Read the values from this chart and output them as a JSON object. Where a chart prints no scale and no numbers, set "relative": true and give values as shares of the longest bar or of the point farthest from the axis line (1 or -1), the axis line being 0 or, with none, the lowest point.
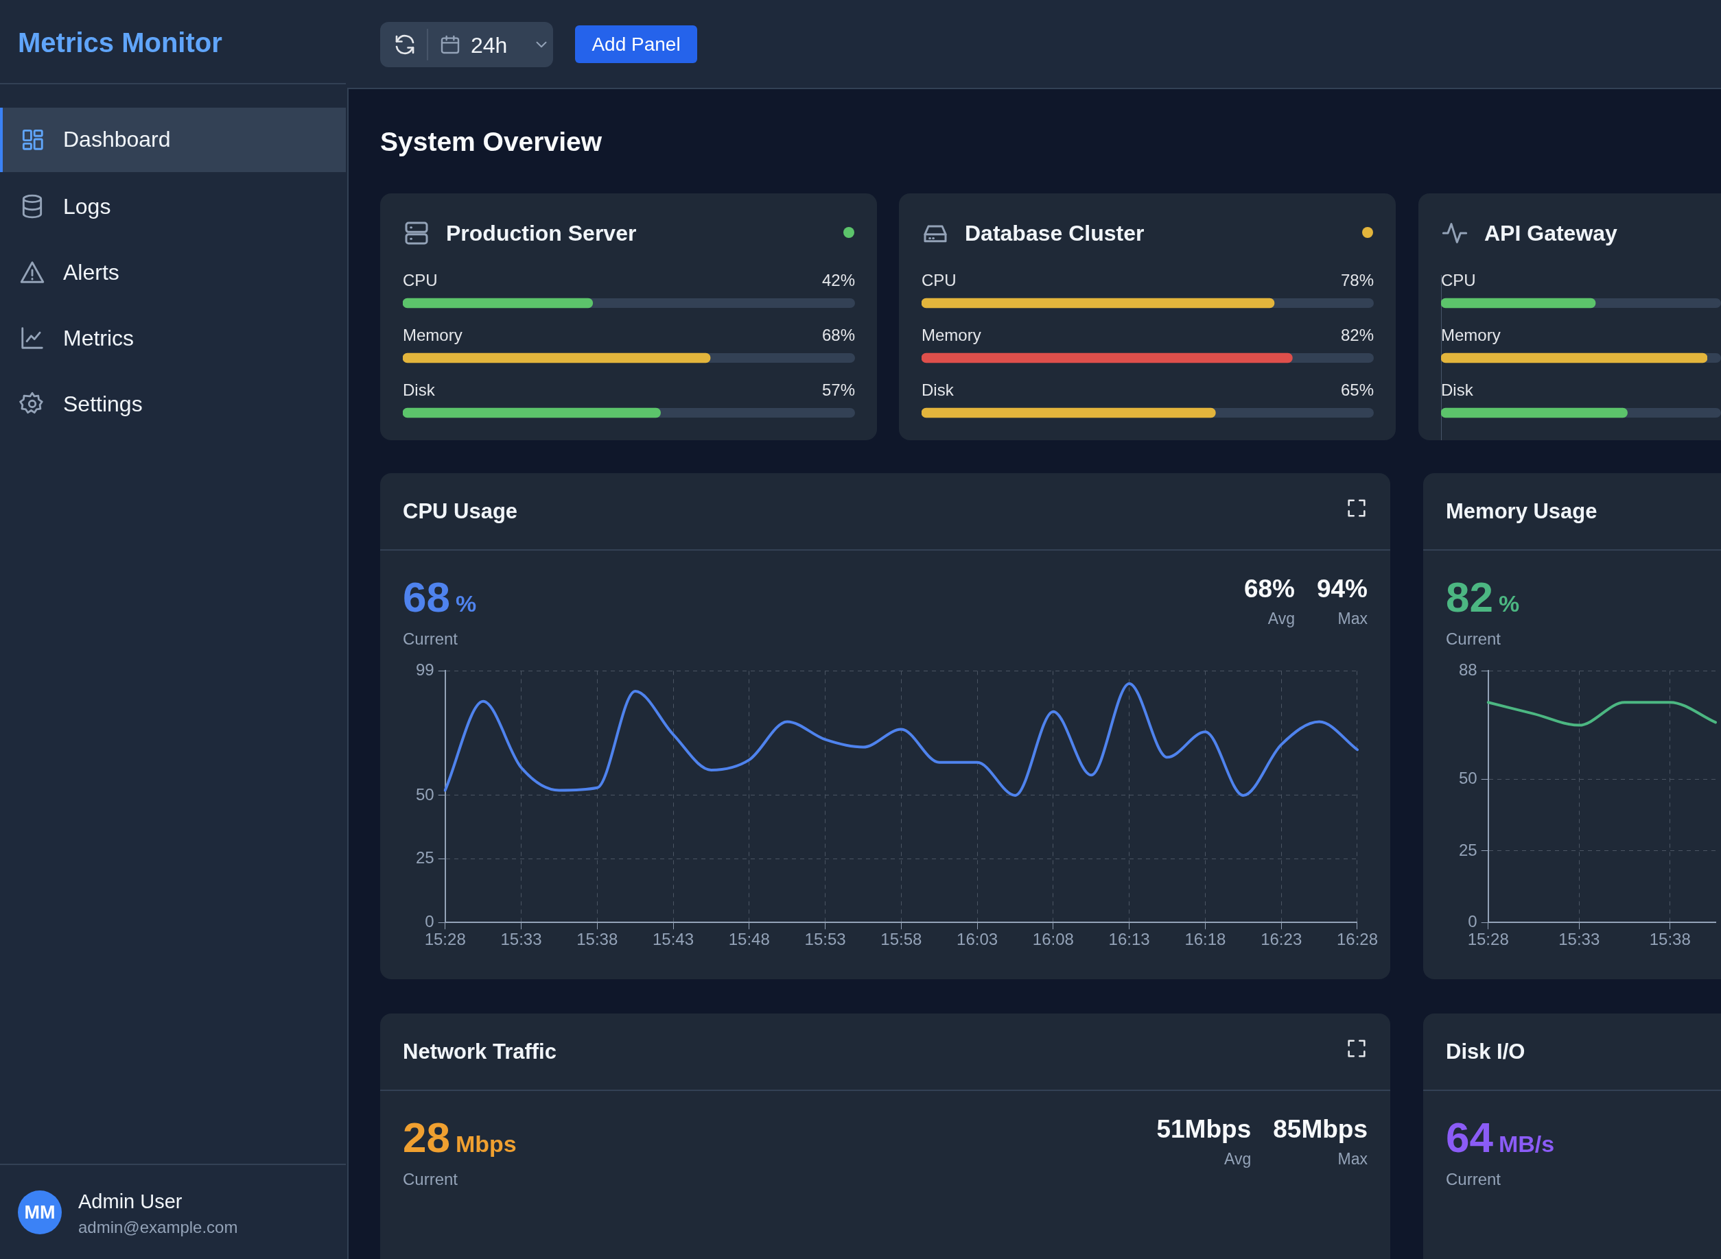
{
  "chart_data": [
    {
      "type": "other",
      "title": "Metrics Monitor",
      "annotations": [
        "Dashboard",
        "Logs",
        "Alerts",
        "Metrics",
        "Settings",
        "MM",
        "Admin User",
        "admin@example.com"
      ]
    },
    {
      "type": "other",
      "title": "System Overview",
      "annotations": [
        "24h",
        "Add Panel"
      ]
    },
    {
      "type": "bar",
      "title": "Production Server",
      "orientation": "horizontal",
      "categories": [
        "CPU",
        "Memory",
        "Disk"
      ],
      "values": [
        42,
        68,
        57
      ],
      "colors": [
        "#5cc46b",
        "#e3b53c",
        "#5cc46b"
      ],
      "value_labels": [
        "42%",
        "68%",
        "57%"
      ],
      "xlim": [
        0,
        100
      ],
      "tick_labels": "y"
    },
    {
      "type": "bar",
      "title": "Database Cluster",
      "orientation": "horizontal",
      "categories": [
        "CPU",
        "Memory",
        "Disk"
      ],
      "values": [
        78,
        82,
        65
      ],
      "colors": [
        "#e3b53c",
        "#de4f4b",
        "#e3b53c"
      ],
      "value_labels": [
        "78%",
        "82%",
        "65%"
      ],
      "xlim": [
        0,
        100
      ],
      "tick_labels": "y"
    },
    {
      "type": "bar",
      "title": "API Gateway",
      "orientation": "horizontal",
      "relative": true,
      "categories": [
        "CPU",
        "Memory",
        "Disk"
      ],
      "values": [
        0.58,
        1,
        0.7
      ],
      "colors": [
        "#5cc46b",
        "#e3b53c",
        "#5cc46b"
      ],
      "tick_labels": "y"
    },
    {
      "type": "line",
      "title": "CPU Usage",
      "annotations": [
        "68",
        "%",
        "Current",
        "68%",
        "Avg",
        "94%",
        "Max"
      ],
      "categories": [
        "15:28",
        null,
        "15:33",
        null,
        "15:38",
        null,
        "15:43",
        null,
        "15:48",
        null,
        "15:53",
        null,
        "15:58",
        null,
        "16:03",
        null,
        "16:08",
        null,
        "16:13",
        null,
        "16:18",
        null,
        "16:23",
        null,
        "16:28"
      ],
      "series": [
        {
          "color": "#4f83ee",
          "values": [
            52,
            87,
            61,
            52,
            53,
            91,
            74,
            60,
            64,
            79,
            72,
            69,
            76,
            63,
            63,
            50,
            83,
            58,
            94,
            65,
            75,
            50,
            70,
            79,
            68
          ]
        }
      ],
      "ylim": [
        0,
        99
      ],
      "yticks": [
        0,
        25,
        50,
        99
      ],
      "grid": true,
      "marker": "none",
      "line_style": "solid"
    },
    {
      "type": "line",
      "title": "Memory Usage",
      "annotations": [
        "82",
        "%",
        "Current"
      ],
      "categories": [
        "15:28",
        null,
        "15:33",
        null,
        "15:38",
        null
      ],
      "series": [
        {
          "color": "#4cb782",
          "values": [
            77,
            73,
            69,
            77,
            77,
            70
          ]
        }
      ],
      "ylim": [
        0,
        88
      ],
      "yticks": [
        0,
        25,
        50,
        88
      ],
      "grid": true,
      "marker": "none",
      "line_style": "solid"
    },
    {
      "type": "other",
      "title": "Network Traffic",
      "color": "#f0a030",
      "annotations": [
        "28",
        "Mbps",
        "Current",
        "51Mbps",
        "Avg",
        "85Mbps",
        "Max"
      ]
    },
    {
      "type": "other",
      "title": "Disk I/O",
      "color": "#8b5cf6",
      "annotations": [
        "64",
        "MB/s",
        "Current"
      ]
    }
  ]
}
